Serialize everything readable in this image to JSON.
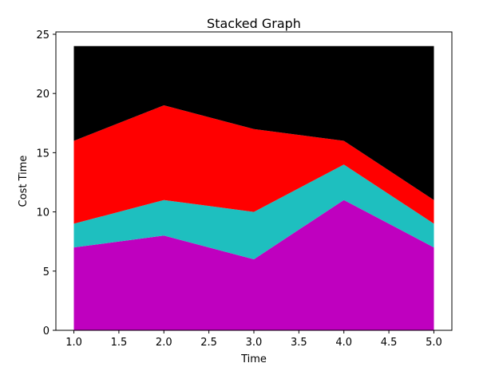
{
  "chart_data": {
    "type": "area",
    "stacked": true,
    "title": "Stacked Graph",
    "xlabel": "Time",
    "ylabel": "Cost Time",
    "x": [
      1,
      2,
      3,
      4,
      5
    ],
    "xlim": [
      0.8,
      5.2
    ],
    "ylim": [
      0,
      25.2
    ],
    "xticks": [
      "1.0",
      "1.5",
      "2.0",
      "2.5",
      "3.0",
      "3.5",
      "4.0",
      "4.5",
      "5.0"
    ],
    "xtick_values": [
      1.0,
      1.5,
      2.0,
      2.5,
      3.0,
      3.5,
      4.0,
      4.5,
      5.0
    ],
    "yticks": [
      "0",
      "5",
      "10",
      "15",
      "20",
      "25"
    ],
    "ytick_values": [
      0,
      5,
      10,
      15,
      20,
      25
    ],
    "grid": false,
    "series": [
      {
        "values": [
          7,
          8,
          6,
          11,
          7
        ],
        "color": "#bf00bf"
      },
      {
        "values": [
          2,
          3,
          4,
          3,
          2
        ],
        "color": "#1ebfbf"
      },
      {
        "values": [
          7,
          8,
          7,
          2,
          2
        ],
        "color": "#ff0000"
      },
      {
        "values": [
          8,
          5,
          7,
          8,
          13
        ],
        "color": "#000000"
      }
    ]
  }
}
